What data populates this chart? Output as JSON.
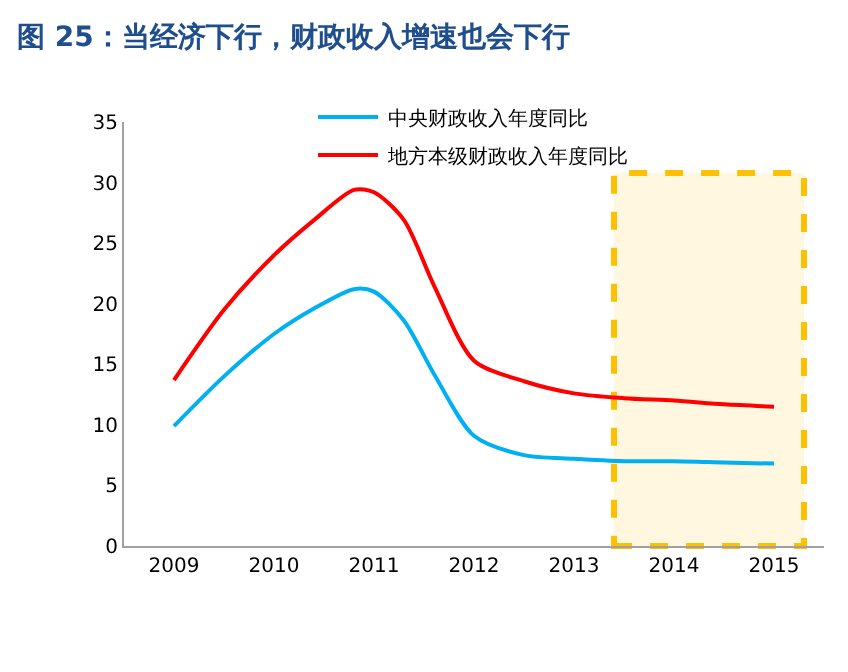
{
  "chart_data": {
    "type": "line",
    "title": "图 25：当经济下行，财政收入增速也会下行",
    "xlim": [
      2008.5,
      2015.5
    ],
    "xticks": [
      2009,
      2010,
      2011,
      2012,
      2013,
      2014,
      2015
    ],
    "ylim": [
      0,
      35
    ],
    "yticks": [
      0,
      5,
      10,
      15,
      20,
      25,
      30,
      35
    ],
    "series": [
      {
        "name": "中央财政收入年度同比",
        "color": "#00b0f0",
        "x": [
          2009,
          2009.5,
          2010,
          2010.4,
          2010.8,
          2011,
          2011.3,
          2011.6,
          2012,
          2012.5,
          2013,
          2013.5,
          2014,
          2014.5,
          2015
        ],
        "values": [
          9.9,
          14,
          17.5,
          19.6,
          21.2,
          21,
          18.6,
          14.2,
          9.1,
          7.5,
          7.2,
          7.0,
          7.0,
          6.9,
          6.8
        ]
      },
      {
        "name": "地方本级财政收入年度同比",
        "color": "#ff0000",
        "x": [
          2009,
          2009.5,
          2010,
          2010.4,
          2010.8,
          2011,
          2011.3,
          2011.6,
          2012,
          2012.5,
          2013,
          2013.5,
          2014,
          2014.5,
          2015
        ],
        "values": [
          13.7,
          19.5,
          24,
          26.9,
          29.4,
          29.2,
          26.9,
          21.5,
          15.3,
          13.6,
          12.6,
          12.2,
          12.0,
          11.7,
          11.5
        ]
      }
    ],
    "bands": [
      {
        "axis": "x",
        "from": 2013.4,
        "to": 2015.3,
        "color": "#ffc000"
      }
    ],
    "grid": false,
    "legend": "top",
    "line_style": "solid",
    "marker": "none"
  }
}
